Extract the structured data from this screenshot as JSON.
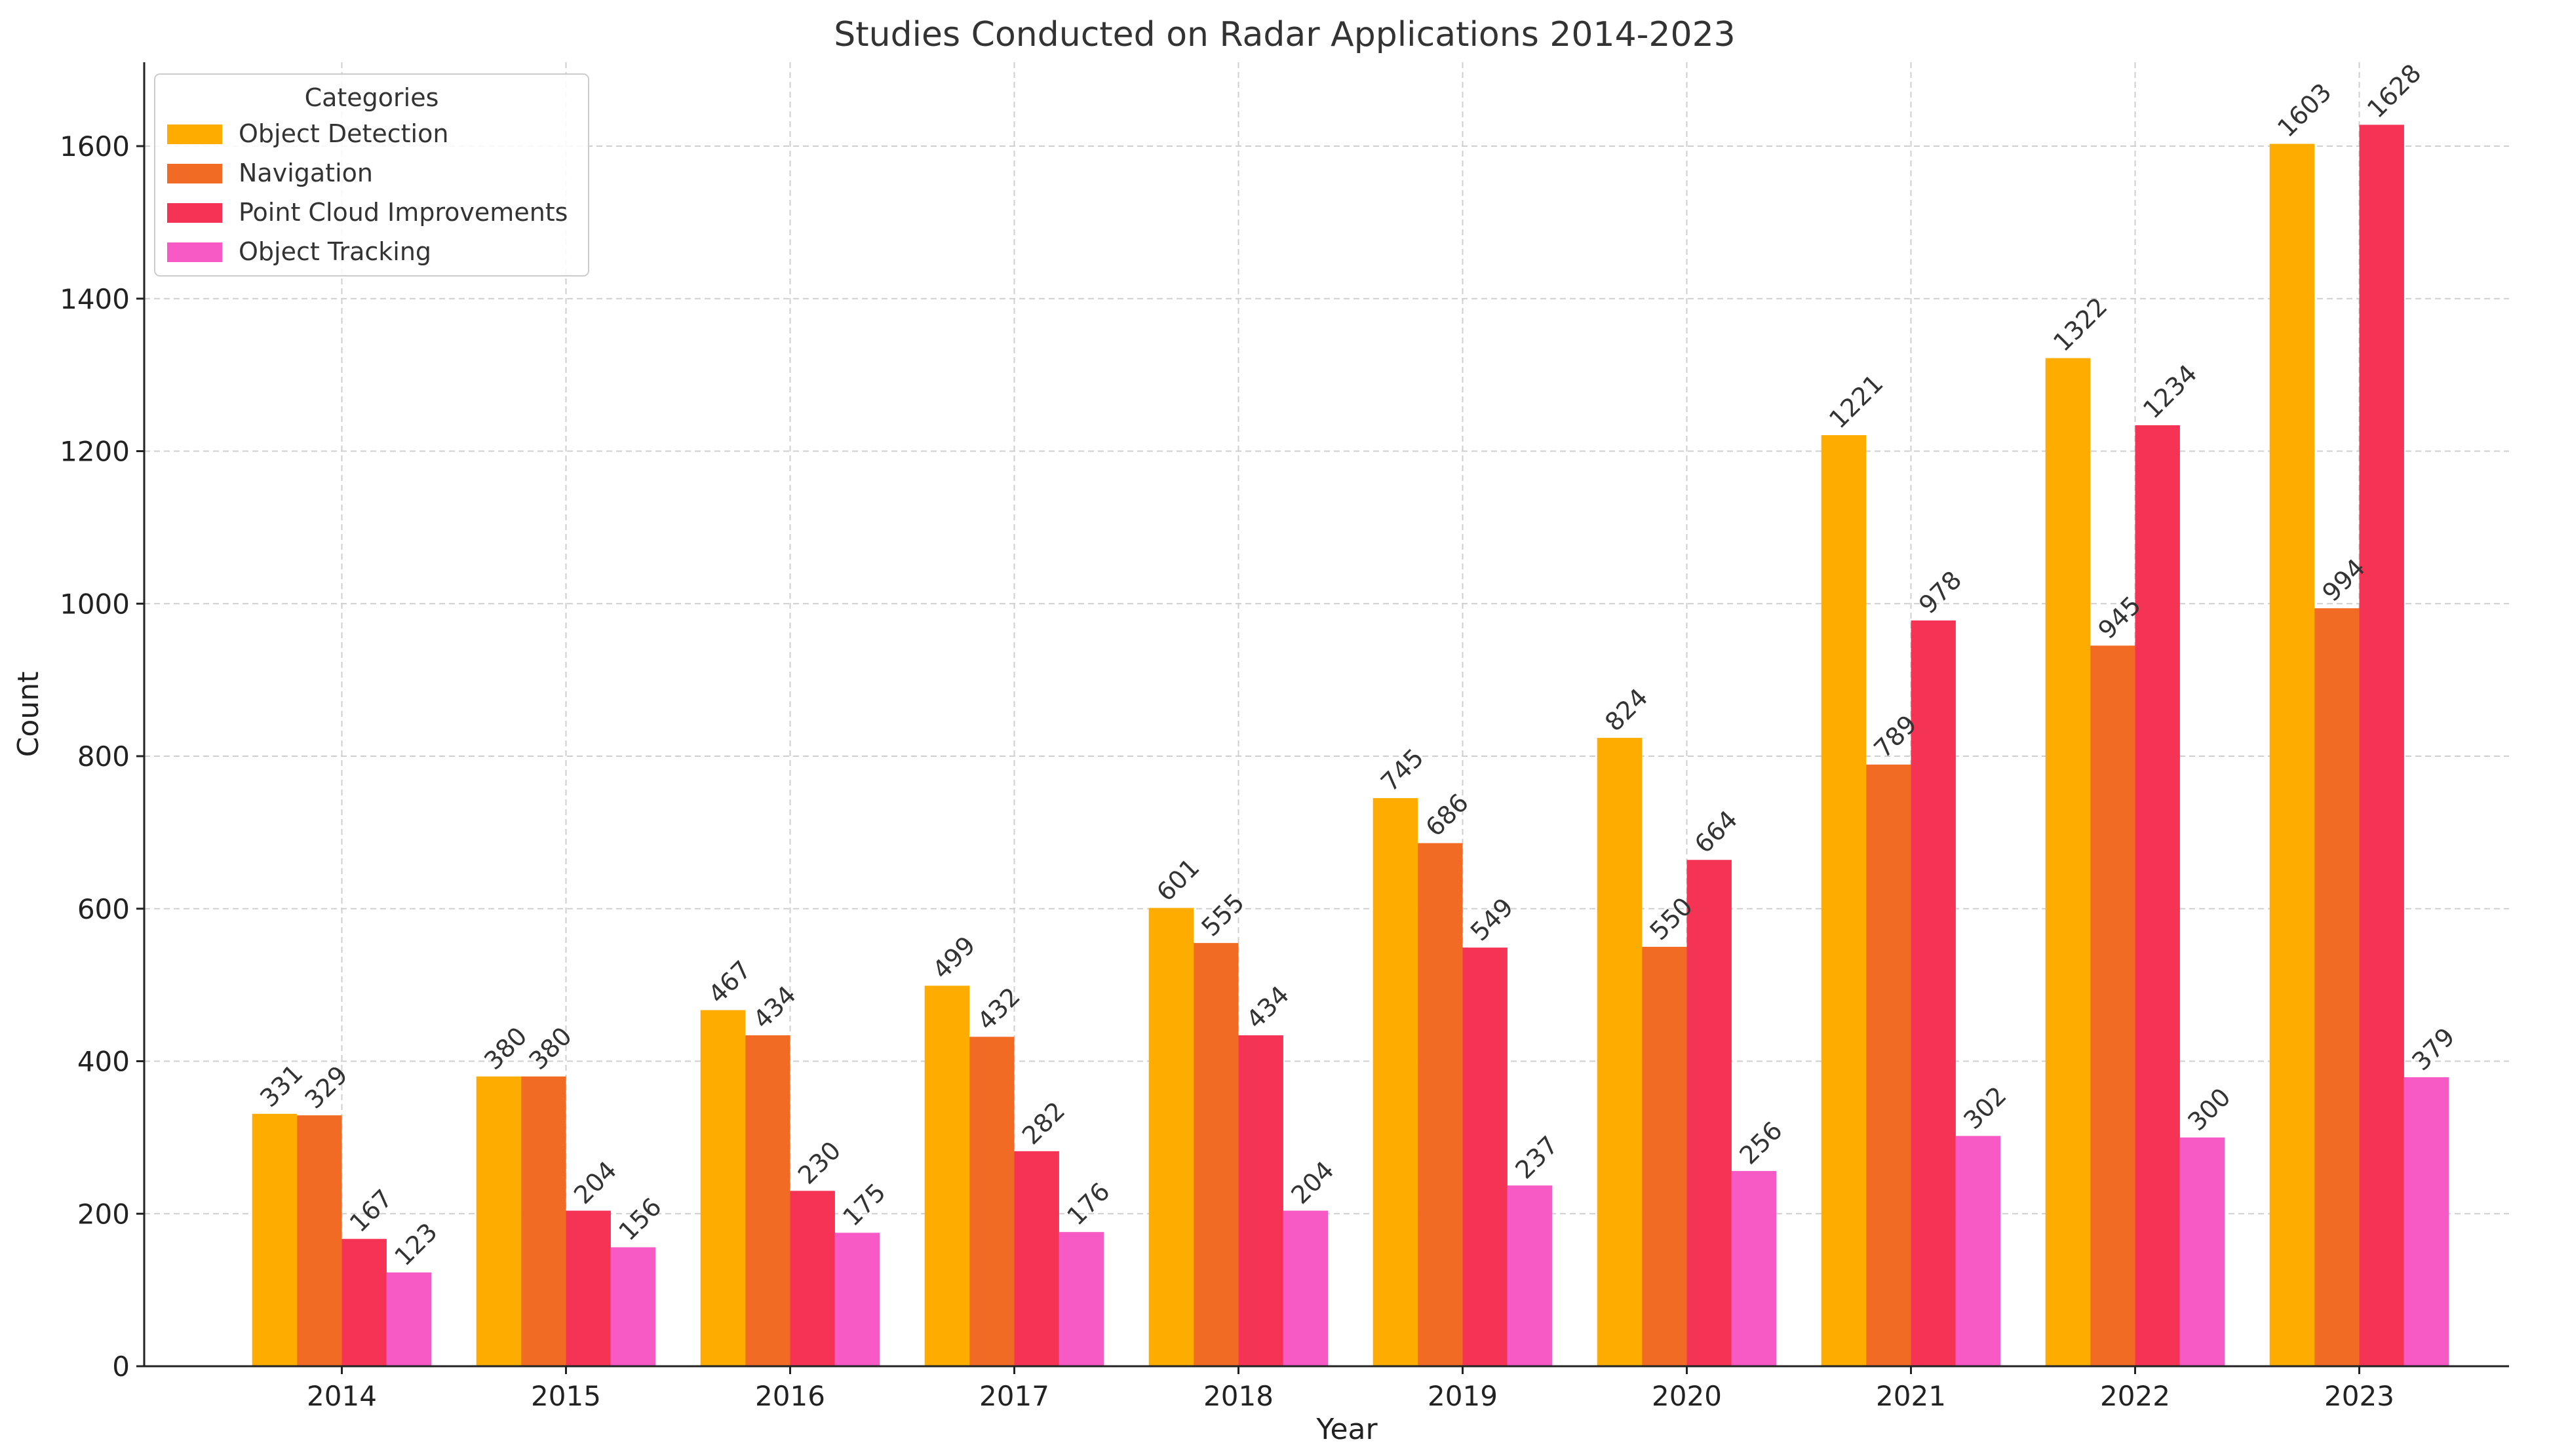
{
  "chart_data": {
    "type": "bar",
    "title": "Studies Conducted on Radar Applications 2014-2023",
    "xlabel": "Year",
    "ylabel": "Count",
    "ylim": [
      0,
      1710
    ],
    "yticks": [
      0,
      200,
      400,
      600,
      800,
      1000,
      1200,
      1400,
      1600
    ],
    "grid": true,
    "legend": {
      "title": "Categories",
      "position": "top-left"
    },
    "categories": [
      "2014",
      "2015",
      "2016",
      "2017",
      "2018",
      "2019",
      "2020",
      "2021",
      "2022",
      "2023"
    ],
    "series": [
      {
        "name": "Object Detection",
        "color": "#FFAC00",
        "values": [
          331,
          380,
          467,
          499,
          601,
          745,
          824,
          1221,
          1322,
          1603
        ]
      },
      {
        "name": "Navigation",
        "color": "#F26B24",
        "values": [
          329,
          380,
          434,
          432,
          555,
          686,
          550,
          789,
          945,
          994
        ]
      },
      {
        "name": "Point Cloud Improvements",
        "color": "#F53455",
        "values": [
          167,
          204,
          230,
          282,
          434,
          549,
          664,
          978,
          1234,
          1628
        ]
      },
      {
        "name": "Object Tracking",
        "color": "#F759C5",
        "values": [
          123,
          156,
          175,
          176,
          204,
          237,
          256,
          302,
          300,
          379
        ]
      }
    ]
  }
}
